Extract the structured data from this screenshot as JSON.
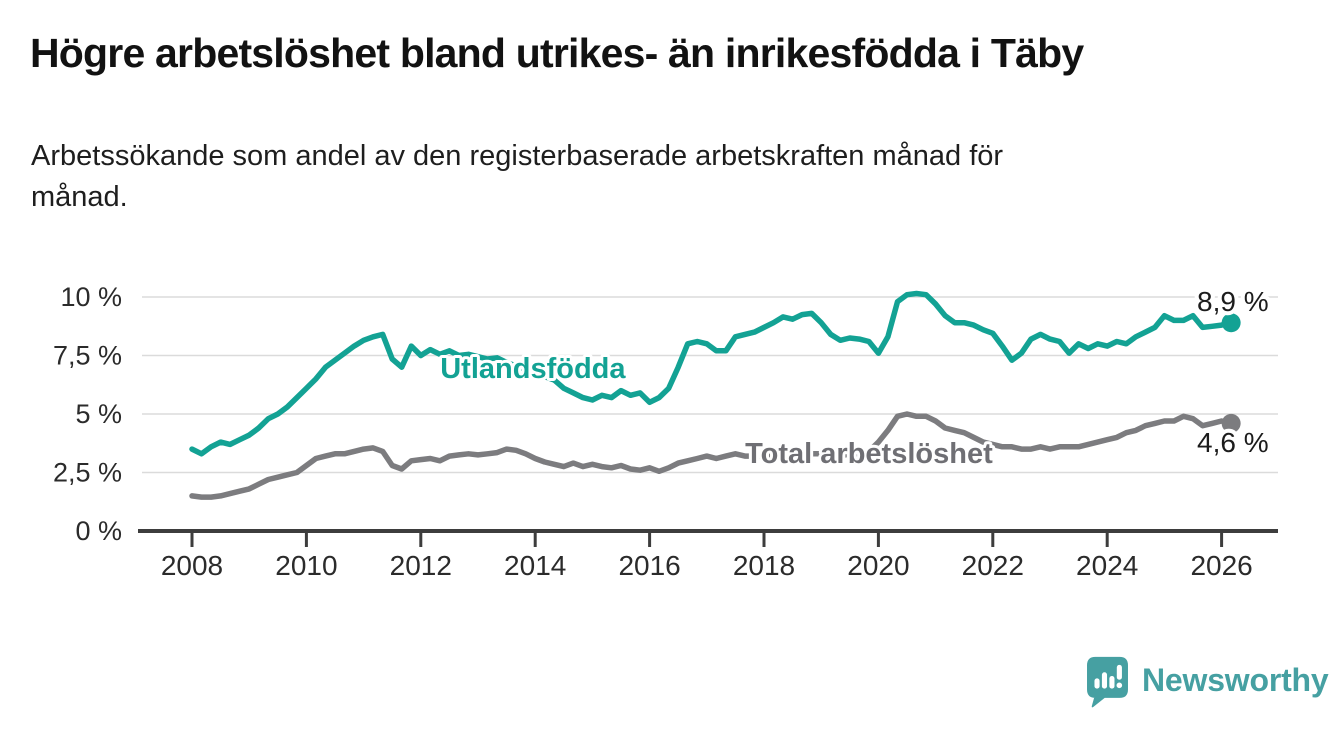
{
  "header": {
    "title": "Högre arbetslöshet bland utrikes- än inrikesfödda i Täby",
    "subtitle_lines": [
      "Arbetssökande som andel av den registerbaserade arbetskraften månad för",
      "månad."
    ]
  },
  "footer": {
    "brand": "Newsworthy",
    "brand_color": "#46a0a2",
    "logo_icon": "speech-bubble-bar-chart-exclamation"
  },
  "chart_data": {
    "type": "line",
    "title": "Högre arbetslöshet bland utrikes- än inrikesfödda i Täby",
    "xlabel": "",
    "ylabel": "",
    "grid": "horizontal",
    "legend": "inline-labels",
    "x_axis": {
      "ticks": [
        2008,
        2010,
        2012,
        2014,
        2016,
        2018,
        2020,
        2022,
        2024,
        2026
      ],
      "range": [
        2007.1,
        2027.0
      ]
    },
    "y_axis": {
      "unit": "%",
      "range": [
        0,
        10.6
      ],
      "ticks": [
        {
          "value": 0,
          "label": "0 %"
        },
        {
          "value": 2.5,
          "label": "2,5 %"
        },
        {
          "value": 5,
          "label": "5 %"
        },
        {
          "value": 7.5,
          "label": "7,5 %"
        },
        {
          "value": 10,
          "label": "10 %"
        }
      ]
    },
    "style": {
      "grid_color": "#dbdbdb",
      "axis_color": "#3d3d3d",
      "tick_label_color": "#2b2b2b"
    },
    "series": [
      {
        "id": "total",
        "name": "Total arbetslöshet",
        "color": "#7c7c7f",
        "end_label": "4,6 %",
        "end_value": 4.6,
        "x_start": 2008,
        "x_step_years": 0.16667,
        "values": [
          1.5,
          1.45,
          1.45,
          1.5,
          1.6,
          1.7,
          1.8,
          2.0,
          2.2,
          2.3,
          2.4,
          2.5,
          2.8,
          3.1,
          3.2,
          3.3,
          3.3,
          3.4,
          3.5,
          3.55,
          3.4,
          2.8,
          2.65,
          3.0,
          3.05,
          3.1,
          3.0,
          3.2,
          3.25,
          3.3,
          3.25,
          3.3,
          3.35,
          3.5,
          3.45,
          3.3,
          3.1,
          2.95,
          2.85,
          2.75,
          2.9,
          2.75,
          2.85,
          2.75,
          2.7,
          2.8,
          2.65,
          2.6,
          2.7,
          2.55,
          2.7,
          2.9,
          3.0,
          3.1,
          3.2,
          3.1,
          3.2,
          3.3,
          3.2,
          3.2,
          3.2,
          3.3,
          3.3,
          3.2,
          3.3,
          3.3,
          3.3,
          3.3,
          3.2,
          3.3,
          3.3,
          3.4,
          3.8,
          4.3,
          4.9,
          5.0,
          4.9,
          4.9,
          4.7,
          4.4,
          4.3,
          4.2,
          4.0,
          3.8,
          3.7,
          3.6,
          3.6,
          3.5,
          3.5,
          3.6,
          3.5,
          3.6,
          3.6,
          3.6,
          3.7,
          3.8,
          3.9,
          4.0,
          4.2,
          4.3,
          4.5,
          4.6,
          4.7,
          4.7,
          4.9,
          4.8,
          4.5,
          4.6,
          4.7,
          4.6
        ]
      },
      {
        "id": "utlandsfodda",
        "name": "Utlandsfödda",
        "color": "#13a294",
        "end_label": "8,9 %",
        "end_value": 8.9,
        "x_start": 2008,
        "x_step_years": 0.16667,
        "values": [
          3.5,
          3.3,
          3.6,
          3.8,
          3.7,
          3.9,
          4.1,
          4.4,
          4.8,
          5.0,
          5.3,
          5.7,
          6.1,
          6.5,
          7.0,
          7.3,
          7.6,
          7.9,
          8.15,
          8.3,
          8.4,
          7.35,
          7.0,
          7.9,
          7.5,
          7.75,
          7.55,
          7.7,
          7.5,
          7.55,
          7.45,
          7.35,
          7.4,
          7.2,
          7.05,
          6.9,
          6.8,
          6.6,
          6.45,
          6.1,
          5.9,
          5.7,
          5.6,
          5.8,
          5.7,
          6.0,
          5.8,
          5.9,
          5.5,
          5.7,
          6.1,
          7.0,
          8.0,
          8.1,
          8.0,
          7.7,
          7.7,
          8.3,
          8.4,
          8.5,
          8.7,
          8.9,
          9.15,
          9.05,
          9.25,
          9.3,
          8.9,
          8.4,
          8.15,
          8.25,
          8.2,
          8.1,
          7.6,
          8.3,
          9.8,
          10.1,
          10.15,
          10.1,
          9.7,
          9.2,
          8.9,
          8.9,
          8.8,
          8.6,
          8.45,
          7.9,
          7.3,
          7.6,
          8.2,
          8.4,
          8.2,
          8.1,
          7.6,
          8.0,
          7.8,
          8.0,
          7.9,
          8.1,
          8.0,
          8.3,
          8.5,
          8.7,
          9.2,
          9.0,
          9.0,
          9.2,
          8.7,
          8.75,
          8.8,
          8.9
        ]
      }
    ],
    "annotations": [
      {
        "name": "series-label-utlandsfodda",
        "text": "Utlandsfödda",
        "x": 2012.34,
        "y": 6.54,
        "color": "#13a294",
        "bold": true,
        "size": 29
      },
      {
        "name": "series-label-total",
        "text": "Total arbetslöshet",
        "x": 2017.67,
        "y": 2.9,
        "color": "#6f6f74",
        "bold": true,
        "size": 29
      },
      {
        "name": "end-value-label-utlandsfodda",
        "text": "8,9 %",
        "x": 2025.57,
        "y": 9.4,
        "color": "#1c1c1c",
        "bold": false,
        "size": 28
      },
      {
        "name": "end-value-label-total",
        "text": "4,6 %",
        "x": 2025.57,
        "y": 3.38,
        "color": "#1c1c1c",
        "bold": false,
        "size": 28
      }
    ]
  }
}
